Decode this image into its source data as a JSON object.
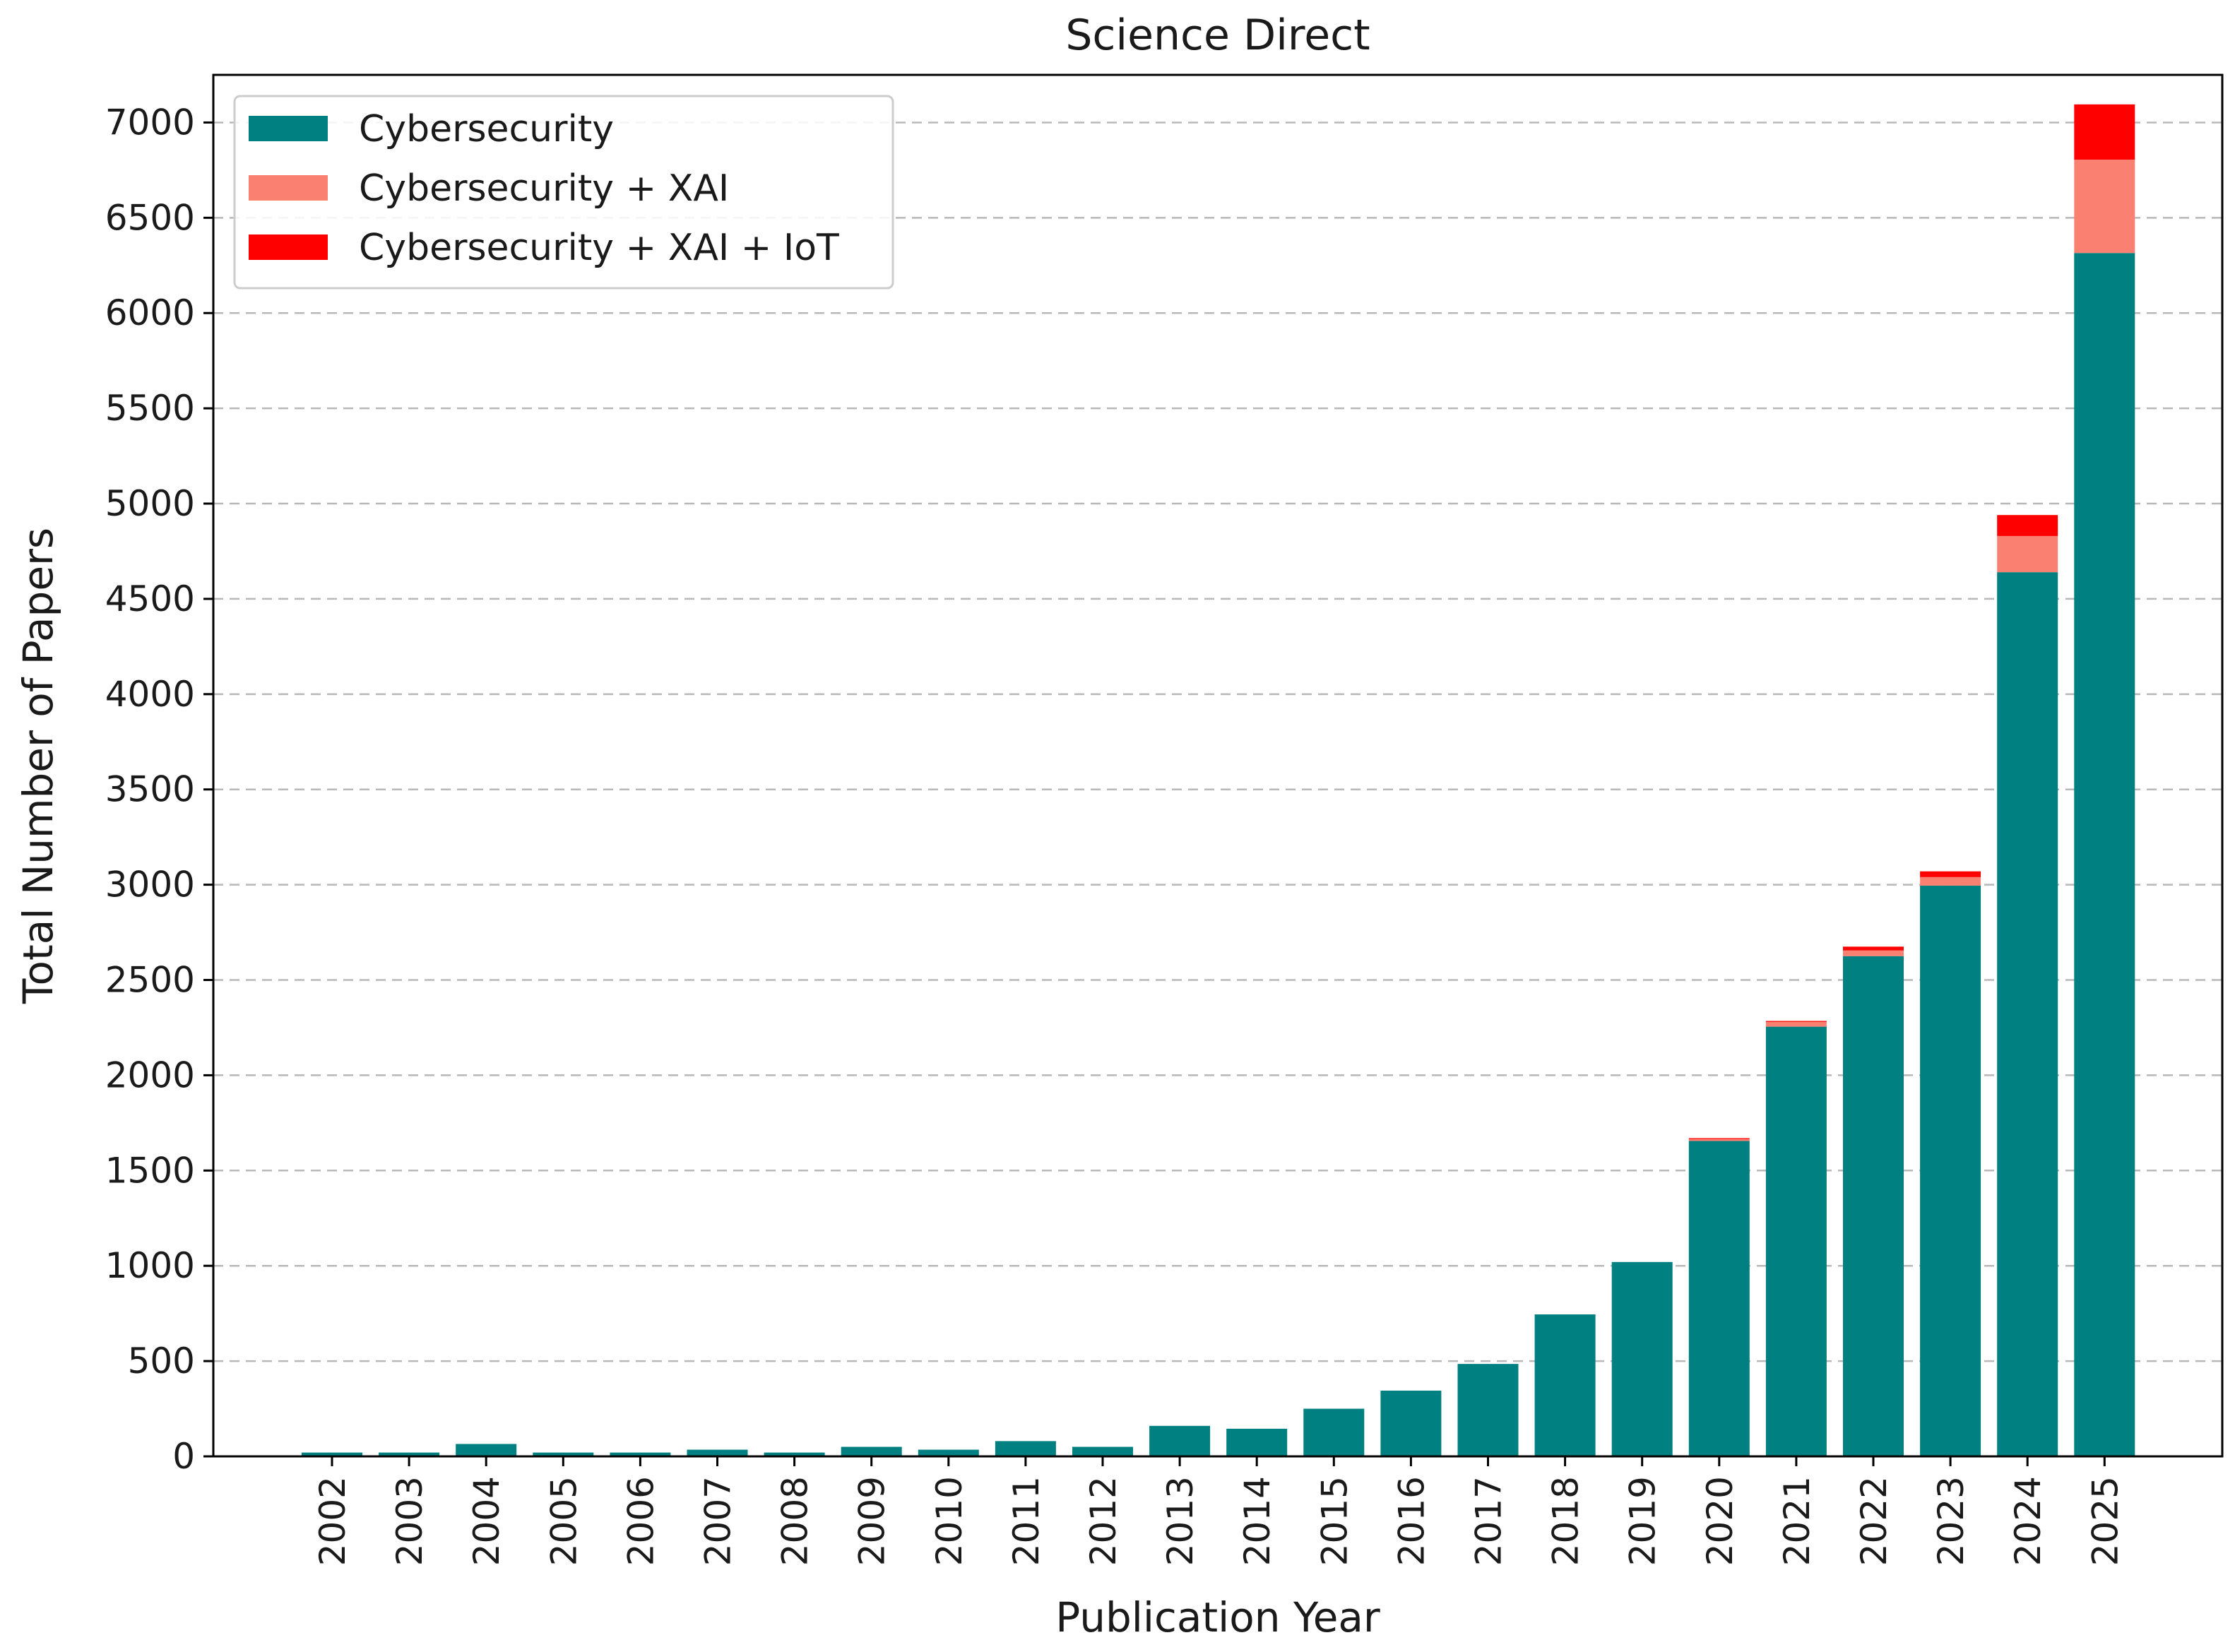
{
  "chart_data": {
    "type": "bar",
    "stacked": true,
    "title": "Science Direct",
    "xlabel": "Publication Year",
    "ylabel": "Total Number of Papers",
    "ylim": [
      0,
      7250
    ],
    "yticks": [
      0,
      500,
      1000,
      1500,
      2000,
      2500,
      3000,
      3500,
      4000,
      4500,
      5000,
      5500,
      6000,
      6500,
      7000
    ],
    "grid": "y-dashed",
    "legend_position": "top-left",
    "categories": [
      "2002",
      "2003",
      "2004",
      "2005",
      "2006",
      "2007",
      "2008",
      "2009",
      "2010",
      "2011",
      "2012",
      "2013",
      "2014",
      "2015",
      "2016",
      "2017",
      "2018",
      "2019",
      "2020",
      "2021",
      "2022",
      "2023",
      "2024",
      "2025"
    ],
    "series": [
      {
        "name": "Cybersecurity",
        "color": "#008080",
        "values": [
          20,
          20,
          65,
          20,
          20,
          35,
          20,
          50,
          35,
          80,
          50,
          160,
          145,
          250,
          345,
          485,
          745,
          1020,
          1655,
          2255,
          2625,
          2995,
          4640,
          6315
        ]
      },
      {
        "name": "Cybersecurity + XAI",
        "color": "#fa8072",
        "values": [
          0,
          0,
          0,
          0,
          0,
          0,
          0,
          0,
          0,
          0,
          0,
          0,
          0,
          0,
          0,
          0,
          0,
          0,
          10,
          25,
          30,
          45,
          190,
          490
        ]
      },
      {
        "name": "Cybersecurity + XAI + IoT",
        "color": "#ff0000",
        "values": [
          0,
          0,
          0,
          0,
          0,
          0,
          0,
          0,
          0,
          0,
          0,
          0,
          0,
          0,
          0,
          0,
          0,
          0,
          5,
          5,
          20,
          30,
          110,
          290
        ]
      }
    ]
  }
}
